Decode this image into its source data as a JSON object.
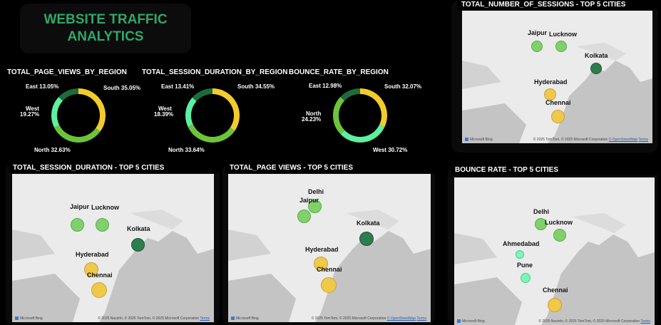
{
  "header": {
    "title_line1": "WEBSITE TRAFFIC",
    "title_line2": "ANALYTICS"
  },
  "colors": {
    "east": "#1e6b3a",
    "south": "#f2cc2c",
    "north": "#6cc43a",
    "west": "#5cf0a0",
    "bubble_green": "#7fd16a",
    "bubble_dark": "#2e7d4e",
    "bubble_yellow": "#f0c84a",
    "bubble_mint": "#7ff5b8"
  },
  "donuts": [
    {
      "title": "TOTAL_PAGE_VIEWS_BY_REGION",
      "segments": [
        {
          "label": "South 35.05%",
          "region": "South",
          "value": 35.05,
          "color": "#f2cc2c"
        },
        {
          "label": "North 32.63%",
          "region": "North",
          "value": 32.63,
          "color": "#6cc43a"
        },
        {
          "label_a": "West",
          "label_b": "19.27%",
          "region": "West",
          "value": 19.27,
          "color": "#5cf0a0"
        },
        {
          "label": "East 13.05%",
          "region": "East",
          "value": 13.05,
          "color": "#1e6b3a"
        }
      ]
    },
    {
      "title": "TOTAL_SESSION_DURATION_BY_REGION",
      "segments": [
        {
          "label": "South 34.55%",
          "region": "South",
          "value": 34.55,
          "color": "#f2cc2c"
        },
        {
          "label": "North 33.64%",
          "region": "North",
          "value": 33.64,
          "color": "#6cc43a"
        },
        {
          "label_a": "West",
          "label_b": "18.39%",
          "region": "West",
          "value": 18.39,
          "color": "#5cf0a0"
        },
        {
          "label": "East 13.41%",
          "region": "East",
          "value": 13.41,
          "color": "#1e6b3a"
        }
      ]
    },
    {
      "title": "BOUNCE_RATE_BY_REGION",
      "segments": [
        {
          "label": "South 32.07%",
          "region": "South",
          "value": 32.07,
          "color": "#f2cc2c"
        },
        {
          "label": "West 30.72%",
          "region": "West",
          "value": 30.72,
          "color": "#5cf0a0"
        },
        {
          "label_a": "North",
          "label_b": "24.23%",
          "region": "North",
          "value": 24.23,
          "color": "#6cc43a"
        },
        {
          "label": "East 12.98%",
          "region": "East",
          "value": 12.98,
          "color": "#1e6b3a"
        }
      ]
    }
  ],
  "maps": {
    "sessions": {
      "title": "TOTAL_NUMBER_OF_SESSIONS - TOP 5 CITIES",
      "cities": [
        "Jaipur",
        "Lucknow",
        "Kolkata",
        "Hyderabad",
        "Chennai"
      ],
      "attribution": "© 2025 TomTom, © 2025 Microsoft Corporation",
      "attrib_link": "© OpenStreetMap",
      "terms": "Terms"
    },
    "duration": {
      "title": "TOTAL_SESSION_DURATION - TOP 5 CITIES",
      "cities": [
        "Jaipur",
        "Lucknow",
        "Kolkata",
        "Hyderabad",
        "Chennai"
      ],
      "attribution": "© 2025 Navinfo, © 2025 TomTom, © 2025 Microsoft Corporation",
      "terms": "Terms"
    },
    "pageviews": {
      "title": "TOTAL_PAGE VIEWS - TOP 5 CITIES",
      "cities": [
        "Delhi",
        "Jaipur",
        "Kolkata",
        "Hyderabad",
        "Chennai"
      ],
      "attribution": "© 2025 TomTom, © 2025 Microsoft Corporation",
      "attrib_link": "© OpenStreetMap",
      "terms": "Terms"
    },
    "bounce": {
      "title": "BOUNCE RATE - TOP 5 CITIES",
      "cities": [
        "Delhi",
        "Lucknow",
        "Ahmedabad",
        "Pune",
        "Chennai"
      ],
      "attribution": "© 2025 Navinfo, © 2025 TomTom, © 2025 Microsoft Corporation",
      "terms": "Terms"
    }
  },
  "bing_label": "Microsoft Bing"
}
